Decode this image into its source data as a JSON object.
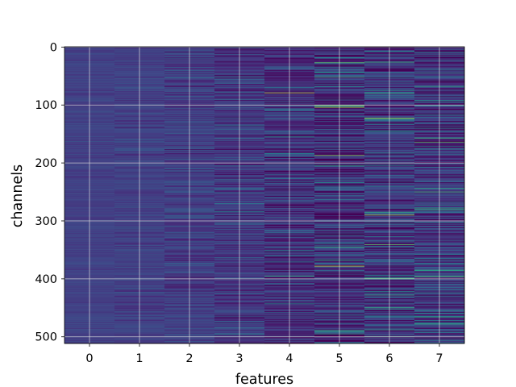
{
  "chart_data": {
    "type": "heatmap",
    "title": "",
    "xlabel": "features",
    "ylabel": "channels",
    "x_ticks": [
      "0",
      "1",
      "2",
      "3",
      "4",
      "5",
      "6",
      "7"
    ],
    "y_ticks": [
      "0",
      "100",
      "200",
      "300",
      "400",
      "500"
    ],
    "y_tick_values": [
      0,
      100,
      200,
      300,
      400,
      500
    ],
    "n_features": 8,
    "n_channels": 512,
    "xlim": [
      -0.5,
      7.5
    ],
    "ylim": [
      511.5,
      -0.5
    ],
    "y_inverted": true,
    "grid": true,
    "colormap": "viridis",
    "colorbar": false,
    "column_variation": [
      0.06,
      0.1,
      0.16,
      0.22,
      0.3,
      0.38,
      0.34,
      0.34
    ],
    "column_base": [
      0.24,
      0.24,
      0.22,
      0.2,
      0.18,
      0.16,
      0.2,
      0.2
    ],
    "highlighted_rows": [
      {
        "feature": 4,
        "channel": 79,
        "value": 0.92
      },
      {
        "feature": 5,
        "channel": 101,
        "value": 0.85
      },
      {
        "feature": 5,
        "channel": 104,
        "value": 0.9
      },
      {
        "feature": 5,
        "channel": 27,
        "value": 0.8
      },
      {
        "feature": 4,
        "channel": 155,
        "value": 0.65
      },
      {
        "feature": 5,
        "channel": 205,
        "value": 0.7
      },
      {
        "feature": 6,
        "channel": 285,
        "value": 0.7
      },
      {
        "feature": 6,
        "channel": 500,
        "value": 0.75
      },
      {
        "feature": 4,
        "channel": 395,
        "value": 0.75
      },
      {
        "feature": 7,
        "channel": 68,
        "value": 0.7
      },
      {
        "feature": 7,
        "channel": 244,
        "value": 0.7
      },
      {
        "feature": 6,
        "channel": 452,
        "value": 0.65
      },
      {
        "feature": 5,
        "channel": 490,
        "value": 0.75
      }
    ]
  }
}
